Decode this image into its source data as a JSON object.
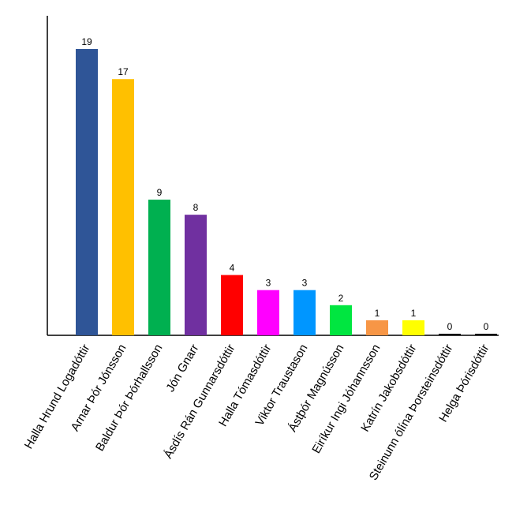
{
  "chart_data": {
    "type": "bar",
    "categories": [
      "Halla Hrund Logadóttir",
      "Arnar Þór Jónsson",
      "Baldur Þór Þórhallsson",
      "Jón Gnarr",
      "Ásdís Rán Gunnarsdóttir",
      "Halla Tómasdóttir",
      "Viktor Traustason",
      "Ástþór Magnússon",
      "Eiríkur Ingi Jóhannsson",
      "Katrín Jakobsdóttir",
      "Steinunn ólína Þorsteinsdóttir",
      "Helga Þórisdóttir"
    ],
    "values": [
      19,
      17,
      9,
      8,
      4,
      3,
      3,
      2,
      1,
      1,
      0,
      0
    ],
    "colors": [
      "#2f5597",
      "#ffc000",
      "#00b050",
      "#7030a0",
      "#ff0000",
      "#ff00ff",
      "#0096ff",
      "#00e640",
      "#f79646",
      "#ffff00",
      "#000000",
      "#000000"
    ],
    "ylim": [
      0,
      21.2
    ]
  }
}
